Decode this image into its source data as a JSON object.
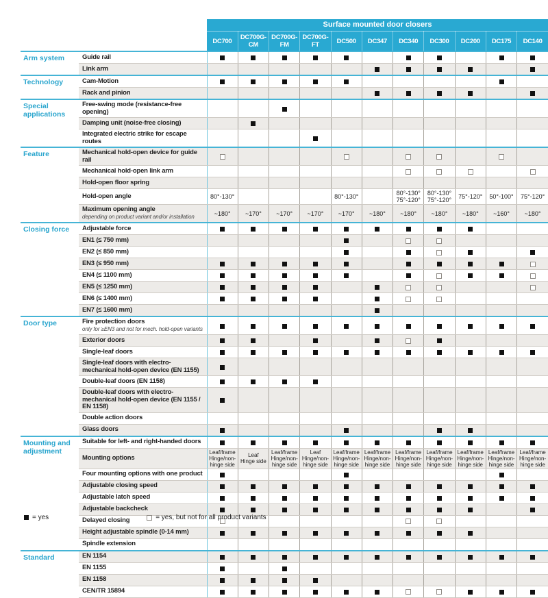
{
  "title": "Surface mounted door closers",
  "columns": [
    "DC700",
    "DC700G-CM",
    "DC700G-FM",
    "DC700G-FT",
    "DC500",
    "DC347",
    "DC340",
    "DC300",
    "DC200",
    "DC175",
    "DC140"
  ],
  "legend": {
    "yes": "= yes",
    "partial": "= yes, but not for all product variants"
  },
  "colors": {
    "accent_cyan": "#29A9D2",
    "section_line": "#45B4D6",
    "stripe_gray": "#EDEBE8",
    "square_black": "#111111"
  },
  "sections": [
    {
      "category": "Arm system",
      "rows": [
        {
          "label": "Guide rail",
          "cells": [
            "y",
            "y",
            "y",
            "y",
            "y",
            "",
            "y",
            "y",
            "",
            "y",
            "y"
          ]
        },
        {
          "label": "Link arm",
          "cells": [
            "",
            "",
            "",
            "",
            "",
            "y",
            "y",
            "y",
            "y",
            "",
            "y"
          ]
        }
      ]
    },
    {
      "category": "Technology",
      "rows": [
        {
          "label": "Cam-Motion",
          "cells": [
            "y",
            "y",
            "y",
            "y",
            "y",
            "",
            "",
            "",
            "",
            "y",
            ""
          ]
        },
        {
          "label": "Rack and pinion",
          "cells": [
            "",
            "",
            "",
            "",
            "",
            "y",
            "y",
            "y",
            "y",
            "",
            "y"
          ]
        }
      ]
    },
    {
      "category": "Special applications",
      "rows": [
        {
          "label": "Free-swing mode (resistance-free opening)",
          "cells": [
            "",
            "",
            "y",
            "",
            "",
            "",
            "",
            "",
            "",
            "",
            ""
          ]
        },
        {
          "label": "Damping unit (noise-free closing)",
          "cells": [
            "",
            "y",
            "",
            "",
            "",
            "",
            "",
            "",
            "",
            "",
            ""
          ]
        },
        {
          "label": "Integrated electric strike for escape routes",
          "cells": [
            "",
            "",
            "",
            "y",
            "",
            "",
            "",
            "",
            "",
            "",
            ""
          ]
        }
      ]
    },
    {
      "category": "Feature",
      "rows": [
        {
          "label": "Mechanical hold-open device for guide rail",
          "cells": [
            "p",
            "",
            "",
            "",
            "p",
            "",
            "p",
            "p",
            "",
            "p",
            ""
          ]
        },
        {
          "label": "Mechanical hold-open link arm",
          "cells": [
            "",
            "",
            "",
            "",
            "",
            "",
            "p",
            "p",
            "p",
            "",
            "p"
          ]
        },
        {
          "label": "Hold-open floor spring",
          "cells": [
            "",
            "",
            "",
            "",
            "",
            "",
            "",
            "",
            "",
            "",
            ""
          ]
        },
        {
          "label": "Hold-open angle",
          "cells": [
            "80°-130°",
            "",
            "",
            "",
            "80°-130°",
            "",
            "80°-130°\n75°-120°",
            "80°-130°\n75°-120°",
            "75°-120°",
            "50°-100°",
            "75°-120°"
          ]
        },
        {
          "label": "Maximum opening angle",
          "sublabel": "depending on product variant and/or installation",
          "cells": [
            "~180°",
            "~170°",
            "~170°",
            "~170°",
            "~170°",
            "~180°",
            "~180°",
            "~180°",
            "~180°",
            "~160°",
            "~180°"
          ]
        }
      ]
    },
    {
      "category": "Closing force",
      "rows": [
        {
          "label": "Adjustable force",
          "cells": [
            "y",
            "y",
            "y",
            "y",
            "y",
            "y",
            "y",
            "y",
            "y",
            "",
            ""
          ]
        },
        {
          "label": "EN1 (≤ 750 mm)",
          "cells": [
            "",
            "",
            "",
            "",
            "y",
            "",
            "p",
            "p",
            "",
            "",
            ""
          ]
        },
        {
          "label": "EN2 (≤ 850 mm)",
          "cells": [
            "",
            "",
            "",
            "",
            "y",
            "",
            "y",
            "p",
            "y",
            "",
            "y"
          ]
        },
        {
          "label": "EN3 (≤ 950 mm)",
          "cells": [
            "y",
            "y",
            "y",
            "y",
            "y",
            "",
            "y",
            "y",
            "y",
            "y",
            "p"
          ]
        },
        {
          "label": "EN4 (≤ 1100 mm)",
          "cells": [
            "y",
            "y",
            "y",
            "y",
            "y",
            "",
            "y",
            "p",
            "y",
            "y",
            "p"
          ]
        },
        {
          "label": "EN5 (≤ 1250 mm)",
          "cells": [
            "y",
            "y",
            "y",
            "y",
            "",
            "y",
            "p",
            "p",
            "",
            "",
            "p"
          ]
        },
        {
          "label": "EN6 (≤ 1400 mm)",
          "cells": [
            "y",
            "y",
            "y",
            "y",
            "",
            "y",
            "p",
            "p",
            "",
            "",
            ""
          ]
        },
        {
          "label": "EN7 (≤ 1600 mm)",
          "cells": [
            "",
            "",
            "",
            "",
            "",
            "y",
            "",
            "",
            "",
            "",
            ""
          ]
        }
      ]
    },
    {
      "category": "Door type",
      "rows": [
        {
          "label": "Fire protection doors",
          "sublabel": "only for ≥EN3 and not for mech. hold-open variants",
          "cells": [
            "y",
            "y",
            "y",
            "y",
            "y",
            "y",
            "y",
            "y",
            "y",
            "y",
            "y"
          ]
        },
        {
          "label": "Exterior doors",
          "cells": [
            "y",
            "y",
            "",
            "y",
            "",
            "y",
            "p",
            "y",
            "",
            "",
            ""
          ]
        },
        {
          "label": "Single-leaf doors",
          "cells": [
            "y",
            "y",
            "y",
            "y",
            "y",
            "y",
            "y",
            "y",
            "y",
            "y",
            "y"
          ]
        },
        {
          "label": "Single-leaf doors with electro-mechanical hold-open device (EN 1155)",
          "cells": [
            "y",
            "",
            "",
            "",
            "",
            "",
            "",
            "",
            "",
            "",
            ""
          ]
        },
        {
          "label": "Double-leaf doors (EN 1158)",
          "cells": [
            "y",
            "y",
            "y",
            "y",
            "",
            "",
            "",
            "",
            "",
            "",
            ""
          ]
        },
        {
          "label": "Double-leaf doors with electro-mechanical hold-open device (EN 1155 / EN 1158)",
          "cells": [
            "y",
            "",
            "",
            "",
            "",
            "",
            "",
            "",
            "",
            "",
            ""
          ]
        },
        {
          "label": "Double action doors",
          "cells": [
            "",
            "",
            "",
            "",
            "",
            "",
            "",
            "",
            "",
            "",
            ""
          ]
        },
        {
          "label": "Glass doors",
          "cells": [
            "y",
            "",
            "",
            "",
            "y",
            "",
            "",
            "y",
            "y",
            "",
            ""
          ]
        }
      ]
    },
    {
      "category": "Mounting and adjustment",
      "rows": [
        {
          "label": "Suitable for left- and right-handed doors",
          "cells": [
            "y",
            "y",
            "y",
            "y",
            "y",
            "y",
            "y",
            "y",
            "y",
            "y",
            "y"
          ]
        },
        {
          "label": "Mounting options",
          "small": true,
          "cells": [
            "Leaf/frame\nHinge/non-hinge side",
            "Leaf\nHinge side",
            "Leaf/frame\nHinge/non-hinge side",
            "Leaf\nHinge/non-hinge side",
            "Leaf/frame\nHinge/non-hinge side",
            "Leaf/frame\nHinge/non-hinge side",
            "Leaf/frame\nHinge/non-hinge side",
            "Leaf/frame\nHinge/non-hinge side",
            "Leaf/frame\nHinge/non-hinge side",
            "Leaf/frame\nHinge/non-hinge side",
            "Leaf/frame\nHinge/non-hinge side"
          ]
        },
        {
          "label": "Four mounting options with one product",
          "cells": [
            "y",
            "",
            "",
            "",
            "y",
            "",
            "",
            "",
            "",
            "y",
            ""
          ]
        },
        {
          "label": "Adjustable closing speed",
          "cells": [
            "y",
            "y",
            "y",
            "y",
            "y",
            "y",
            "y",
            "y",
            "y",
            "y",
            "y"
          ]
        },
        {
          "label": "Adjustable latch speed",
          "cells": [
            "y",
            "y",
            "y",
            "y",
            "y",
            "y",
            "y",
            "y",
            "y",
            "y",
            "y"
          ]
        },
        {
          "label": "Adjustable backcheck",
          "cells": [
            "y",
            "y",
            "y",
            "y",
            "y",
            "y",
            "y",
            "y",
            "y",
            "",
            "y"
          ]
        },
        {
          "label": "Delayed closing",
          "cells": [
            "p",
            "",
            "",
            "",
            "",
            "",
            "p",
            "p",
            "",
            "",
            ""
          ]
        },
        {
          "label": "Height adjustable spindle (0-14 mm)",
          "cells": [
            "y",
            "y",
            "y",
            "y",
            "y",
            "y",
            "y",
            "y",
            "y",
            "",
            ""
          ]
        },
        {
          "label": "Spindle extension",
          "cells": [
            "",
            "",
            "",
            "",
            "",
            "",
            "",
            "",
            "",
            "",
            ""
          ]
        }
      ]
    },
    {
      "category": "Standard",
      "rows": [
        {
          "label": "EN 1154",
          "cells": [
            "y",
            "y",
            "y",
            "y",
            "y",
            "y",
            "y",
            "y",
            "y",
            "y",
            "y"
          ]
        },
        {
          "label": "EN 1155",
          "cells": [
            "y",
            "",
            "y",
            "",
            "",
            "",
            "",
            "",
            "",
            "",
            ""
          ]
        },
        {
          "label": "EN 1158",
          "cells": [
            "y",
            "y",
            "y",
            "y",
            "",
            "",
            "",
            "",
            "",
            "",
            ""
          ]
        },
        {
          "label": "CEN/TR 15894",
          "cells": [
            "y",
            "y",
            "y",
            "y",
            "y",
            "y",
            "p",
            "p",
            "y",
            "y",
            "y"
          ]
        }
      ]
    }
  ]
}
